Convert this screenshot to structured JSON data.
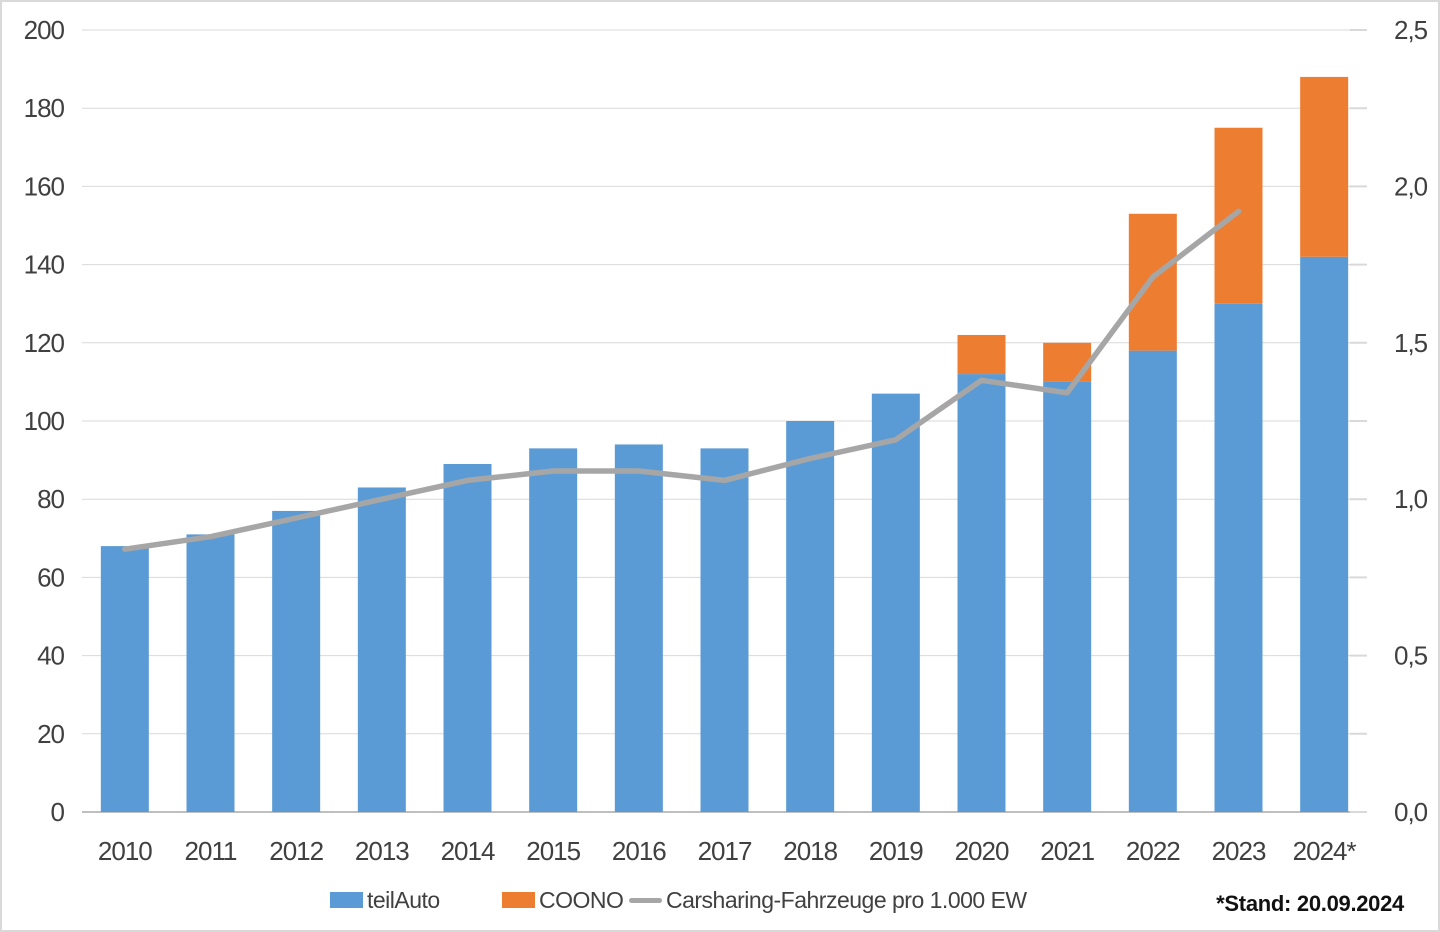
{
  "chart_data": {
    "type": "bar",
    "subtype": "stacked-bar-with-line-combo",
    "title": "",
    "xlabel": "",
    "ylabel": "",
    "categories": [
      "2010",
      "2011",
      "2012",
      "2013",
      "2014",
      "2015",
      "2016",
      "2017",
      "2018",
      "2019",
      "2020",
      "2021",
      "2022",
      "2023",
      "2024*"
    ],
    "series": [
      {
        "name": "teilAuto",
        "chart_type": "bar",
        "stack": "vehicles",
        "axis": "left",
        "color": "#5B9BD5",
        "values": [
          68,
          71,
          77,
          83,
          89,
          93,
          94,
          93,
          100,
          107,
          112,
          110,
          118,
          130,
          142
        ]
      },
      {
        "name": "COONO",
        "chart_type": "bar",
        "stack": "vehicles",
        "axis": "left",
        "color": "#ED7D31",
        "values": [
          0,
          0,
          0,
          0,
          0,
          0,
          0,
          0,
          0,
          0,
          10,
          10,
          35,
          45,
          46
        ]
      },
      {
        "name": "Carsharing-Fahrzeuge pro 1.000 EW",
        "chart_type": "line",
        "axis": "right",
        "color": "#A6A6A6",
        "values": [
          0.84,
          0.88,
          0.94,
          1.0,
          1.06,
          1.09,
          1.09,
          1.06,
          1.13,
          1.19,
          1.38,
          1.34,
          1.71,
          1.92,
          null
        ]
      }
    ],
    "left_axis": {
      "min": 0,
      "max": 200,
      "step": 20,
      "labels": [
        "0",
        "20",
        "40",
        "60",
        "80",
        "100",
        "120",
        "140",
        "160",
        "180",
        "200"
      ]
    },
    "right_axis": {
      "min": 0,
      "max": 2.5,
      "step": 0.5,
      "minor_tick_step": 0.25,
      "labels": [
        "0,0",
        "0,5",
        "1,0",
        "1,5",
        "2,0",
        "2,5"
      ]
    },
    "grid": true,
    "legend_position": "bottom"
  },
  "legend": {
    "items": [
      {
        "label": "teilAuto",
        "color": "#5B9BD5",
        "swatch": "bar"
      },
      {
        "label": "COONO",
        "color": "#ED7D31",
        "swatch": "bar"
      },
      {
        "label": "Carsharing-Fahrzeuge pro 1.000 EW",
        "color": "#A6A6A6",
        "swatch": "line"
      }
    ]
  },
  "footnote": "*Stand: 20.09.2024",
  "colors": {
    "gridline": "#D9D9D9",
    "axis_line": "#BFBFBF",
    "tick_text": "#404040",
    "background": "#FFFFFF"
  }
}
